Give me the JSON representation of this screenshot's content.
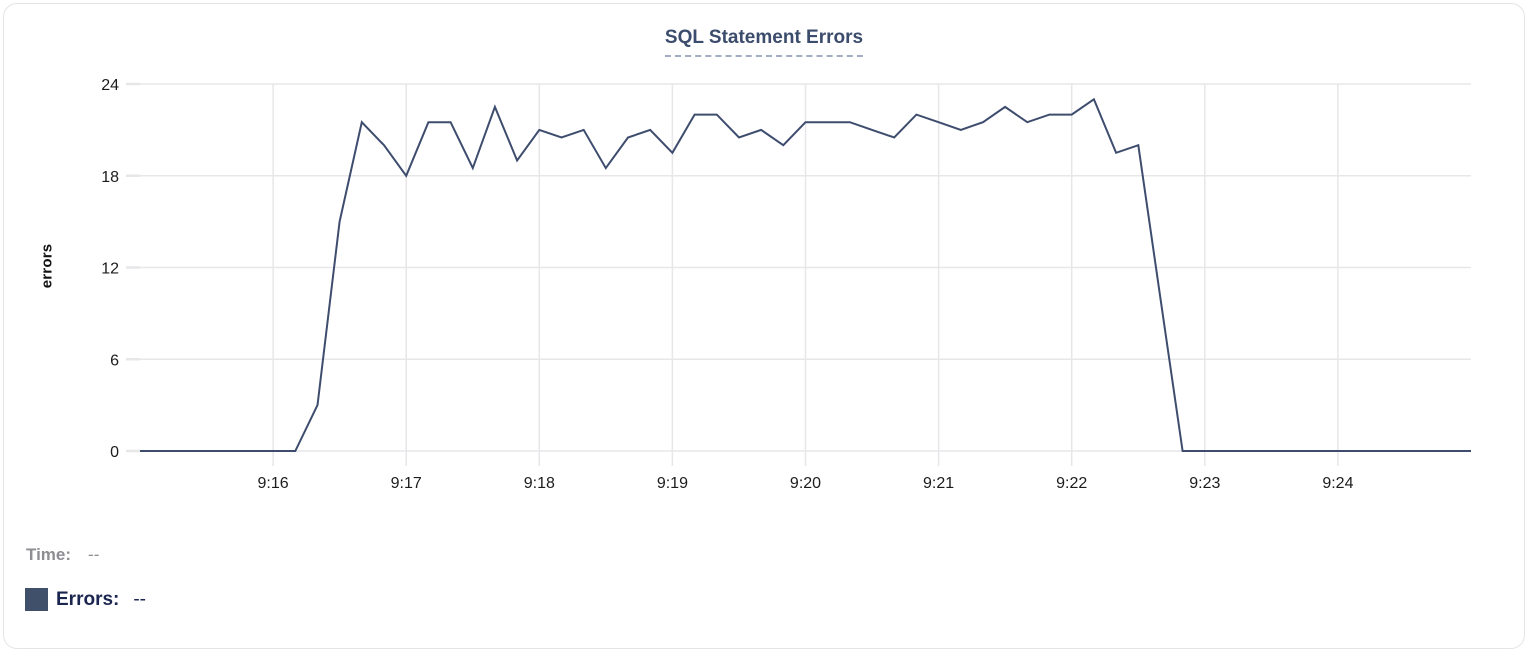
{
  "colors": {
    "line": "#3e4d6e",
    "swatch": "#40506b",
    "title_text": "#3b4c6c",
    "grid": "#e7e7ea",
    "tick_text": "#1c1c1e",
    "time_readout": "#8d8d92",
    "errors_readout": "#1b2650",
    "card_border": "#e4e4e7"
  },
  "tooltip": {
    "time_label": "Time:",
    "time_value": "--",
    "errors_label": "Errors:",
    "errors_value": "--"
  },
  "chart_data": {
    "type": "line",
    "title": "SQL Statement Errors",
    "xlabel": "",
    "ylabel": "errors",
    "ylim": [
      0,
      24
    ],
    "y_ticks": [
      0,
      6,
      12,
      18,
      24
    ],
    "x_ticks": [
      "9:16",
      "9:17",
      "9:18",
      "9:19",
      "9:20",
      "9:21",
      "9:22",
      "9:23",
      "9:24"
    ],
    "x_range": [
      "9:15:00",
      "9:25:00"
    ],
    "grid": true,
    "legend_position": "bottom",
    "series": [
      {
        "name": "Errors",
        "color": "#3e4d6e",
        "points": [
          [
            "9:15:00",
            0
          ],
          [
            "9:15:10",
            0
          ],
          [
            "9:15:20",
            0
          ],
          [
            "9:15:30",
            0
          ],
          [
            "9:15:40",
            0
          ],
          [
            "9:15:50",
            0
          ],
          [
            "9:16:00",
            0
          ],
          [
            "9:16:10",
            0
          ],
          [
            "9:16:20",
            3
          ],
          [
            "9:16:30",
            15
          ],
          [
            "9:16:40",
            21.5
          ],
          [
            "9:16:50",
            20
          ],
          [
            "9:17:00",
            18
          ],
          [
            "9:17:10",
            21.5
          ],
          [
            "9:17:20",
            21.5
          ],
          [
            "9:17:30",
            18.5
          ],
          [
            "9:17:40",
            22.5
          ],
          [
            "9:17:50",
            19
          ],
          [
            "9:18:00",
            21
          ],
          [
            "9:18:10",
            20.5
          ],
          [
            "9:18:20",
            21
          ],
          [
            "9:18:30",
            18.5
          ],
          [
            "9:18:40",
            20.5
          ],
          [
            "9:18:50",
            21
          ],
          [
            "9:19:00",
            19.5
          ],
          [
            "9:19:10",
            22
          ],
          [
            "9:19:20",
            22
          ],
          [
            "9:19:30",
            20.5
          ],
          [
            "9:19:40",
            21
          ],
          [
            "9:19:50",
            20
          ],
          [
            "9:20:00",
            21.5
          ],
          [
            "9:20:10",
            21.5
          ],
          [
            "9:20:20",
            21.5
          ],
          [
            "9:20:30",
            21
          ],
          [
            "9:20:40",
            20.5
          ],
          [
            "9:20:50",
            22
          ],
          [
            "9:21:00",
            21.5
          ],
          [
            "9:21:10",
            21
          ],
          [
            "9:21:20",
            21.5
          ],
          [
            "9:21:30",
            22.5
          ],
          [
            "9:21:40",
            21.5
          ],
          [
            "9:21:50",
            22
          ],
          [
            "9:22:00",
            22
          ],
          [
            "9:22:10",
            23
          ],
          [
            "9:22:20",
            19.5
          ],
          [
            "9:22:30",
            20
          ],
          [
            "9:22:40",
            10
          ],
          [
            "9:22:50",
            0
          ],
          [
            "9:23:00",
            0
          ],
          [
            "9:23:10",
            0
          ],
          [
            "9:23:20",
            0
          ],
          [
            "9:23:30",
            0
          ],
          [
            "9:23:40",
            0
          ],
          [
            "9:23:50",
            0
          ],
          [
            "9:24:00",
            0
          ],
          [
            "9:24:10",
            0
          ],
          [
            "9:24:20",
            0
          ],
          [
            "9:24:30",
            0
          ],
          [
            "9:24:40",
            0
          ],
          [
            "9:24:50",
            0
          ],
          [
            "9:25:00",
            0
          ]
        ]
      }
    ]
  }
}
